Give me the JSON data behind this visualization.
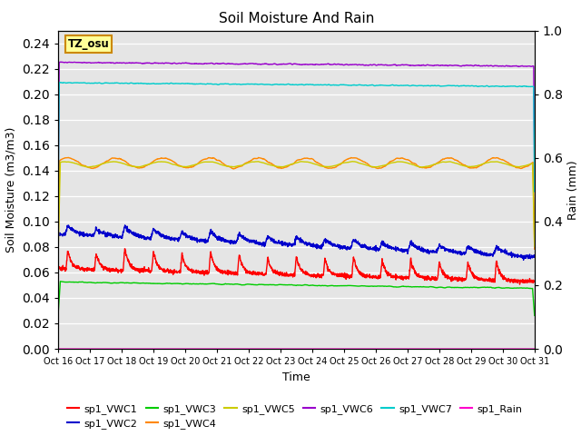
{
  "title": "Soil Moisture And Rain",
  "xlabel": "Time",
  "ylabel_left": "Soil Moisture (m3/m3)",
  "ylabel_right": "Rain (mm)",
  "tz_label": "TZ_osu",
  "ylim_left": [
    0.0,
    0.25
  ],
  "ylim_right": [
    0.0,
    1.0
  ],
  "x_ticks_labels": [
    "Oct 16",
    "Oct 17",
    "Oct 18",
    "Oct 19",
    "Oct 20",
    "Oct 21",
    "Oct 22",
    "Oct 23",
    "Oct 24",
    "Oct 25",
    "Oct 26",
    "Oct 27",
    "Oct 28",
    "Oct 29",
    "Oct 30",
    "Oct 31"
  ],
  "background_color": "#e5e5e5",
  "series": {
    "sp1_VWC1": {
      "color": "#ff0000",
      "base": 0.063,
      "trend": -0.01
    },
    "sp1_VWC2": {
      "color": "#0000cc",
      "base": 0.09,
      "trend": -0.018
    },
    "sp1_VWC3": {
      "color": "#00cc00",
      "base": 0.0525,
      "trend": -0.005
    },
    "sp1_VWC4": {
      "color": "#ff8800",
      "base": 0.146,
      "trend": 0.0
    },
    "sp1_VWC5": {
      "color": "#cccc00",
      "base": 0.145,
      "trend": 0.0
    },
    "sp1_VWC6": {
      "color": "#9900cc",
      "base": 0.225,
      "trend": -0.003
    },
    "sp1_VWC7": {
      "color": "#00cccc",
      "base": 0.209,
      "trend": -0.003
    },
    "sp1_Rain": {
      "color": "#ff00cc",
      "base": 0.0,
      "trend": 0.0
    }
  },
  "legend_entries": [
    {
      "label": "sp1_VWC1",
      "color": "#ff0000"
    },
    {
      "label": "sp1_VWC2",
      "color": "#0000cc"
    },
    {
      "label": "sp1_VWC3",
      "color": "#00cc00"
    },
    {
      "label": "sp1_VWC4",
      "color": "#ff8800"
    },
    {
      "label": "sp1_VWC5",
      "color": "#cccc00"
    },
    {
      "label": "sp1_VWC6",
      "color": "#9900cc"
    },
    {
      "label": "sp1_VWC7",
      "color": "#00cccc"
    },
    {
      "label": "sp1_Rain",
      "color": "#ff00cc"
    }
  ]
}
